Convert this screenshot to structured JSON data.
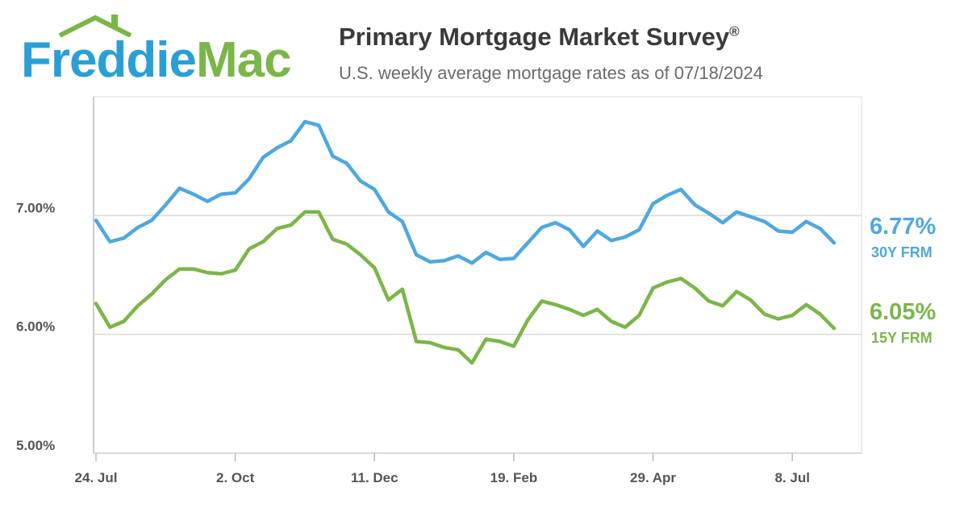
{
  "logo": {
    "word1": "Freddie",
    "word2": "Mac"
  },
  "header": {
    "title": "Primary Mortgage Market Survey",
    "title_mark": "®",
    "subtitle": "U.S. weekly average mortgage rates as of 07/18/2024"
  },
  "colors": {
    "frm30": "#4ea8e0",
    "frm15": "#7ab648",
    "grid": "#d9d9d9",
    "axis": "#bbbbbb",
    "brand_blue": "#2a9fd6",
    "brand_green": "#7ab648"
  },
  "chart_data": {
    "type": "line",
    "title": "Primary Mortgage Market Survey",
    "subtitle": "U.S. weekly average mortgage rates as of 07/18/2024",
    "ylim": [
      5.0,
      8.0
    ],
    "yticks": [
      5.0,
      6.0,
      7.0
    ],
    "ytick_labels": [
      "5.00%",
      "6.00%",
      "7.00%"
    ],
    "xticks": [
      {
        "week": 1,
        "label": "24. Jul"
      },
      {
        "week": 11,
        "label": "2. Oct"
      },
      {
        "week": 21,
        "label": "11. Dec"
      },
      {
        "week": 31,
        "label": "19. Feb"
      },
      {
        "week": 41,
        "label": "29. Apr"
      },
      {
        "week": 51,
        "label": "8. Jul"
      }
    ],
    "grid": true,
    "series": [
      {
        "name": "30Y FRM",
        "color": "#4ea8e0",
        "final_label": "6.77%",
        "values": [
          6.96,
          6.78,
          6.81,
          6.9,
          6.96,
          7.09,
          7.23,
          7.18,
          7.12,
          7.18,
          7.19,
          7.31,
          7.49,
          7.57,
          7.63,
          7.79,
          7.76,
          7.5,
          7.44,
          7.29,
          7.22,
          7.03,
          6.95,
          6.67,
          6.61,
          6.62,
          6.66,
          6.6,
          6.69,
          6.63,
          6.64,
          6.77,
          6.9,
          6.94,
          6.88,
          6.74,
          6.87,
          6.79,
          6.82,
          6.88,
          7.1,
          7.17,
          7.22,
          7.09,
          7.02,
          6.94,
          7.03,
          6.99,
          6.95,
          6.87,
          6.86,
          6.95,
          6.89,
          6.77
        ]
      },
      {
        "name": "15Y FRM",
        "color": "#7ab648",
        "final_label": "6.05%",
        "values": [
          6.26,
          6.06,
          6.11,
          6.24,
          6.34,
          6.46,
          6.55,
          6.55,
          6.52,
          6.51,
          6.54,
          6.72,
          6.78,
          6.89,
          6.92,
          7.03,
          7.03,
          6.8,
          6.76,
          6.67,
          6.56,
          6.29,
          6.38,
          5.94,
          5.93,
          5.89,
          5.87,
          5.76,
          5.96,
          5.94,
          5.9,
          6.12,
          6.28,
          6.25,
          6.21,
          6.16,
          6.21,
          6.11,
          6.06,
          6.16,
          6.39,
          6.44,
          6.47,
          6.39,
          6.28,
          6.24,
          6.36,
          6.29,
          6.17,
          6.13,
          6.16,
          6.25,
          6.17,
          6.05
        ]
      }
    ]
  }
}
